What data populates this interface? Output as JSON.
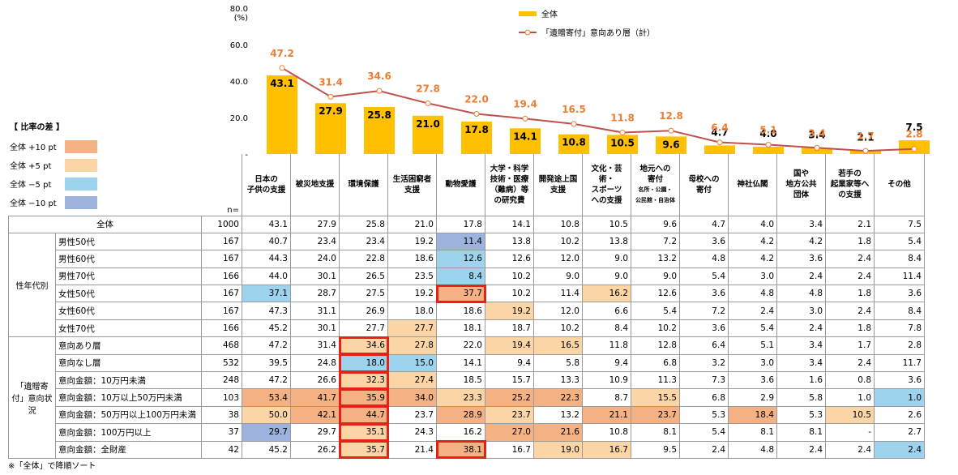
{
  "chart_data": {
    "type": "bar",
    "y_unit": "(%)",
    "ylim": [
      0,
      80
    ],
    "yticks": [
      "-",
      "20.0",
      "40.0",
      "60.0",
      "80.0"
    ],
    "categories": [
      "日本の子供の支援",
      "被災地支援",
      "環境保護",
      "生活困窮者支援",
      "動物愛護",
      "大学・科学技術・医療（難病）等の研究費",
      "開発途上国支援",
      "文化・芸術・スポーツへの支援",
      "地元への寄付",
      "母校への寄付",
      "神社仏閣",
      "国や地方公共団体",
      "若手の起業家等への支援",
      "その他"
    ],
    "series": [
      {
        "name": "全体",
        "kind": "bar",
        "color": "#FFC000",
        "values": [
          43.1,
          27.9,
          25.8,
          21.0,
          17.8,
          14.1,
          10.8,
          10.5,
          9.6,
          4.7,
          4.0,
          3.4,
          2.1,
          7.5
        ],
        "labels": [
          "43.1",
          "27.9",
          "25.8",
          "21.0",
          "17.8",
          "14.1",
          "10.8",
          "10.5",
          "9.6",
          "4.7",
          "4.0",
          "3.4",
          "2.1",
          "7.5"
        ]
      },
      {
        "name": "「遺贈寄付」意向あり層（計）",
        "kind": "line",
        "color": "#C0504D",
        "values": [
          47.2,
          31.4,
          34.6,
          27.8,
          22.0,
          19.4,
          16.5,
          11.8,
          12.8,
          6.4,
          5.1,
          3.4,
          1.7,
          2.8
        ],
        "labels": [
          "47.2",
          "31.4",
          "34.6",
          "27.8",
          "22.0",
          "19.4",
          "16.5",
          "11.8",
          "12.8",
          "6.4",
          "5.1",
          "3.4",
          "1.7",
          "2.8"
        ]
      }
    ]
  },
  "diff_legend": {
    "title": "【 比率の差 】",
    "items": [
      {
        "label": "全体 +10 pt",
        "color": "#F4B183"
      },
      {
        "label": "全体 +5 pt",
        "color": "#FBD5A5"
      },
      {
        "label": "全体 −5 pt",
        "color": "#9DD3EC"
      },
      {
        "label": "全体 −10 pt",
        "color": "#9DB3DE"
      }
    ]
  },
  "table": {
    "n_label": "n=",
    "headers": [
      [
        "日本の",
        "子供の支援"
      ],
      [
        "被災地支援"
      ],
      [
        "環境保護"
      ],
      [
        "生活困窮者",
        "支援"
      ],
      [
        "動物愛護"
      ],
      [
        "大学・科学",
        "技術・医療",
        "（難病）等",
        "の研究費"
      ],
      [
        "開発途上国",
        "支援"
      ],
      [
        "文化・芸術・",
        "スポーツ",
        "への支援"
      ],
      [
        "地元への",
        "寄付",
        "名所・公園・",
        "公民館・自治体"
      ],
      [
        "母校への",
        "寄付"
      ],
      [
        "神社仏閣"
      ],
      [
        "国や",
        "地方公共",
        "団体"
      ],
      [
        "若手の",
        "起業家等へ",
        "の支援"
      ],
      [
        "その他"
      ]
    ],
    "groups": [
      {
        "label": "",
        "rows": [
          {
            "label": "全体",
            "n": "1000",
            "values": [
              "43.1",
              "27.9",
              "25.8",
              "21.0",
              "17.8",
              "14.1",
              "10.8",
              "10.5",
              "9.6",
              "4.7",
              "4.0",
              "3.4",
              "2.1",
              "7.5"
            ],
            "colors": [
              "",
              "",
              "",
              "",
              "",
              "",
              "",
              "",
              "",
              "",
              "",
              "",
              "",
              ""
            ],
            "boxed": []
          }
        ]
      },
      {
        "label": "性年代別",
        "rows": [
          {
            "label": "男性50代",
            "n": "167",
            "values": [
              "40.7",
              "23.4",
              "23.4",
              "19.2",
              "11.4",
              "13.8",
              "10.2",
              "13.8",
              "7.2",
              "3.6",
              "4.2",
              "4.2",
              "1.8",
              "5.4"
            ],
            "colors": [
              "",
              "",
              "",
              "",
              "m10",
              "",
              "",
              "",
              "",
              "",
              "",
              "",
              "",
              ""
            ],
            "boxed": []
          },
          {
            "label": "男性60代",
            "n": "167",
            "values": [
              "44.3",
              "24.0",
              "22.8",
              "18.6",
              "12.6",
              "12.6",
              "12.0",
              "9.0",
              "13.2",
              "4.8",
              "4.2",
              "3.6",
              "2.4",
              "8.4"
            ],
            "colors": [
              "",
              "",
              "",
              "",
              "m5",
              "",
              "",
              "",
              "",
              "",
              "",
              "",
              "",
              ""
            ],
            "boxed": []
          },
          {
            "label": "男性70代",
            "n": "166",
            "values": [
              "44.0",
              "30.1",
              "26.5",
              "23.5",
              "8.4",
              "10.2",
              "9.0",
              "9.0",
              "9.0",
              "5.4",
              "3.0",
              "2.4",
              "2.4",
              "11.4"
            ],
            "colors": [
              "",
              "",
              "",
              "",
              "m5",
              "",
              "",
              "",
              "",
              "",
              "",
              "",
              "",
              ""
            ],
            "boxed": []
          },
          {
            "label": "女性50代",
            "n": "167",
            "values": [
              "37.1",
              "28.7",
              "27.5",
              "19.2",
              "37.7",
              "10.2",
              "11.4",
              "16.2",
              "12.6",
              "3.6",
              "4.8",
              "4.8",
              "1.8",
              "3.6"
            ],
            "colors": [
              "m5",
              "",
              "",
              "",
              "p10",
              "",
              "",
              "p5",
              "",
              "",
              "",
              "",
              "",
              ""
            ],
            "boxed": [
              4
            ]
          },
          {
            "label": "女性60代",
            "n": "167",
            "values": [
              "47.3",
              "31.1",
              "26.9",
              "18.0",
              "18.6",
              "19.2",
              "12.0",
              "6.6",
              "5.4",
              "7.2",
              "2.4",
              "3.0",
              "2.4",
              "8.4"
            ],
            "colors": [
              "",
              "",
              "",
              "",
              "",
              "p5",
              "",
              "",
              "",
              "",
              "",
              "",
              "",
              ""
            ],
            "boxed": []
          },
          {
            "label": "女性70代",
            "n": "166",
            "values": [
              "45.2",
              "30.1",
              "27.7",
              "27.7",
              "18.1",
              "18.7",
              "10.2",
              "8.4",
              "10.2",
              "3.6",
              "5.4",
              "2.4",
              "1.8",
              "7.8"
            ],
            "colors": [
              "",
              "",
              "",
              "p5",
              "",
              "",
              "",
              "",
              "",
              "",
              "",
              "",
              "",
              ""
            ],
            "boxed": []
          }
        ]
      },
      {
        "label": "「遺贈寄付」意向状況",
        "rows": [
          {
            "label": "意向あり層",
            "n": "468",
            "values": [
              "47.2",
              "31.4",
              "34.6",
              "27.8",
              "22.0",
              "19.4",
              "16.5",
              "11.8",
              "12.8",
              "6.4",
              "5.1",
              "3.4",
              "1.7",
              "2.8"
            ],
            "colors": [
              "",
              "",
              "p5",
              "p5",
              "",
              "p5",
              "p5",
              "",
              "",
              "",
              "",
              "",
              "",
              ""
            ],
            "boxed": [
              2
            ]
          },
          {
            "label": "意向なし層",
            "n": "532",
            "values": [
              "39.5",
              "24.8",
              "18.0",
              "15.0",
              "14.1",
              "9.4",
              "5.8",
              "9.4",
              "6.8",
              "3.2",
              "3.0",
              "3.4",
              "2.4",
              "11.7"
            ],
            "colors": [
              "",
              "",
              "m5",
              "m5",
              "",
              "",
              "",
              "",
              "",
              "",
              "",
              "",
              "",
              ""
            ],
            "boxed": [
              2
            ]
          },
          {
            "label": "意向金額：10万円未満",
            "n": "248",
            "values": [
              "47.2",
              "26.6",
              "32.3",
              "27.4",
              "18.5",
              "15.7",
              "13.3",
              "10.9",
              "11.3",
              "7.3",
              "3.6",
              "1.6",
              "0.8",
              "3.6"
            ],
            "colors": [
              "",
              "",
              "p5",
              "p5",
              "",
              "",
              "",
              "",
              "",
              "",
              "",
              "",
              "",
              ""
            ],
            "boxed": [
              2
            ]
          },
          {
            "label": "意向金額：10万以上50万円未満",
            "n": "103",
            "values": [
              "53.4",
              "41.7",
              "35.9",
              "34.0",
              "23.3",
              "25.2",
              "22.3",
              "8.7",
              "15.5",
              "6.8",
              "2.9",
              "5.8",
              "1.0",
              "1.0"
            ],
            "colors": [
              "p10",
              "p10",
              "p10",
              "p10",
              "p5",
              "p10",
              "p10",
              "",
              "p5",
              "",
              "",
              "",
              "",
              "m5"
            ],
            "boxed": [
              2
            ]
          },
          {
            "label": "意向金額：50万円以上100万円未満",
            "n": "38",
            "values": [
              "50.0",
              "42.1",
              "44.7",
              "23.7",
              "28.9",
              "23.7",
              "13.2",
              "21.1",
              "23.7",
              "5.3",
              "18.4",
              "5.3",
              "10.5",
              "2.6"
            ],
            "colors": [
              "p5",
              "p10",
              "p10",
              "",
              "p10",
              "p5",
              "",
              "p10",
              "p10",
              "",
              "p10",
              "",
              "p5",
              ""
            ],
            "boxed": [
              2
            ]
          },
          {
            "label": "意向金額：100万円以上",
            "n": "37",
            "values": [
              "29.7",
              "29.7",
              "35.1",
              "24.3",
              "16.2",
              "27.0",
              "21.6",
              "10.8",
              "8.1",
              "5.4",
              "8.1",
              "8.1",
              "-",
              "2.7"
            ],
            "colors": [
              "m10",
              "",
              "p5",
              "",
              "",
              "p10",
              "p10",
              "",
              "",
              "",
              "",
              "",
              "",
              ""
            ],
            "boxed": [
              2
            ]
          },
          {
            "label": "意向金額：全財産",
            "n": "42",
            "values": [
              "45.2",
              "26.2",
              "35.7",
              "21.4",
              "38.1",
              "16.7",
              "19.0",
              "16.7",
              "9.5",
              "2.4",
              "4.8",
              "2.4",
              "2.4",
              "2.4"
            ],
            "colors": [
              "",
              "",
              "p5",
              "",
              "p10",
              "",
              "p5",
              "p5",
              "",
              "",
              "",
              "",
              "",
              "m5"
            ],
            "boxed": [
              2,
              4
            ]
          }
        ]
      }
    ]
  },
  "note": "※「全体」で降順ソート"
}
